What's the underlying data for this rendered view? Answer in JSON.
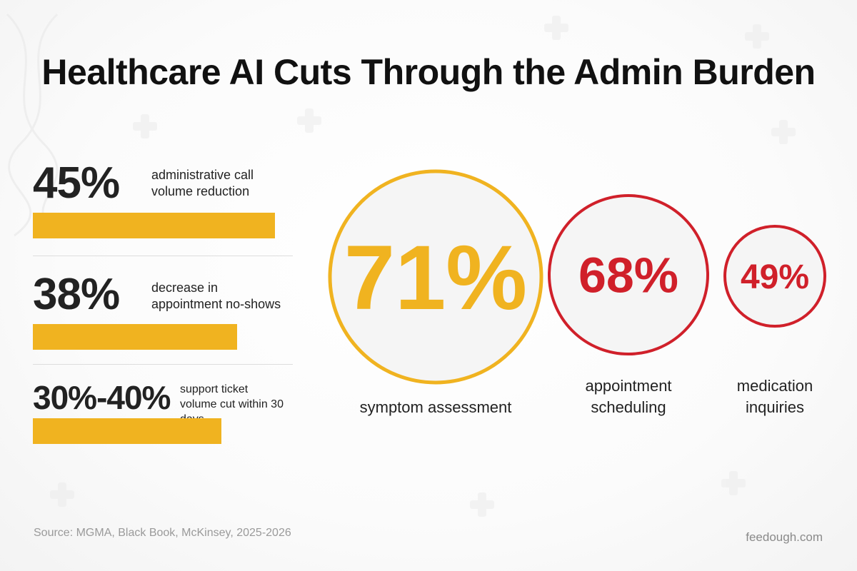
{
  "title": "Healthcare AI Cuts Through the Admin Burden",
  "chart_data": [
    {
      "type": "bar",
      "categories": [
        "administrative call volume reduction",
        "decrease in appointment no-shows",
        "support ticket volume cut within 30 days"
      ],
      "value_labels": [
        "45%",
        "38%",
        "30%-40%"
      ],
      "values": [
        45,
        38,
        35
      ],
      "label_lines": [
        [
          "administrative call",
          "volume reduction"
        ],
        [
          "decrease in",
          "appointment no-shows"
        ],
        [
          "support ticket",
          "volume cut within 30 days"
        ]
      ],
      "color": "#f0b320"
    },
    {
      "type": "bubble",
      "categories": [
        "symptom assessment",
        "appointment scheduling",
        "medication inquiries"
      ],
      "values": [
        71,
        68,
        49
      ],
      "value_labels": [
        "71%",
        "68%",
        "49%"
      ],
      "label_lines": [
        [
          "symptom assessment"
        ],
        [
          "appointment",
          "scheduling"
        ],
        [
          "medication",
          "inquiries"
        ]
      ],
      "colors": [
        "#f0b320",
        "#d0202a",
        "#d0202a"
      ]
    }
  ],
  "footer": {
    "source": "Source: MGMA, Black Book, McKinsey, 2025-2026",
    "brand": "feedough.com"
  }
}
